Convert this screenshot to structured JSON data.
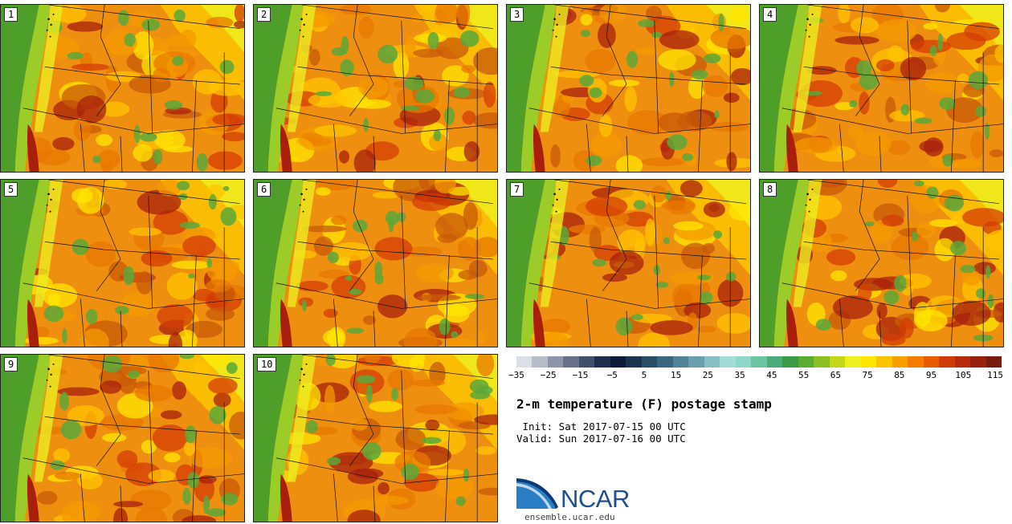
{
  "panels": [
    "1",
    "2",
    "3",
    "4",
    "5",
    "6",
    "7",
    "8",
    "9",
    "10"
  ],
  "colorbar": {
    "colors": [
      "#dcdfe6",
      "#b7bcc9",
      "#8e95a8",
      "#67718a",
      "#40506b",
      "#1f2d4e",
      "#0c1a3a",
      "#1a3450",
      "#2a4d66",
      "#3c6680",
      "#528296",
      "#6aa0ad",
      "#86bfc4",
      "#a3dbd6",
      "#8fd7c6",
      "#6cc4a2",
      "#4daa7a",
      "#3a9a48",
      "#5aac30",
      "#8cc020",
      "#c2d818",
      "#eef020",
      "#ffe600",
      "#fcc400",
      "#f9a000",
      "#f47c00",
      "#e85a00",
      "#d03c08",
      "#b82a0c",
      "#98200e",
      "#781a10"
    ],
    "ticks": [
      "−35",
      "−25",
      "−15",
      "−5",
      "5",
      "15",
      "25",
      "35",
      "45",
      "55",
      "65",
      "75",
      "85",
      "95",
      "105",
      "115"
    ]
  },
  "title": "2-m temperature (F) postage stamp",
  "init": " Init: Sat 2017-07-15 00 UTC",
  "valid": "Valid: Sun 2017-07-16 00 UTC",
  "logo_text": "NCAR",
  "url": "ensemble.ucar.edu"
}
